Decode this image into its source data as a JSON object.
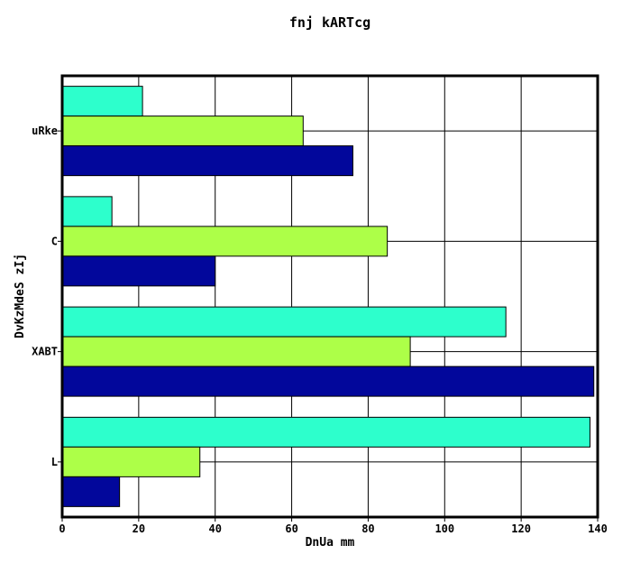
{
  "chart_data": {
    "type": "bar",
    "orientation": "horizontal",
    "title": "fnj kARTcg",
    "xlabel": "DnUa mm",
    "ylabel": "DvKzMdeS zIj",
    "categories": [
      "uRke",
      "C",
      "XABT",
      "L"
    ],
    "xlim": [
      0,
      140
    ],
    "xticks": [
      "0",
      "20",
      "40",
      "60",
      "80",
      "100",
      "120",
      "140"
    ],
    "grid": true,
    "legend": "none",
    "series": [
      {
        "color": "#2dffcc",
        "values": [
          21,
          13,
          116,
          138
        ]
      },
      {
        "color": "#adff48",
        "values": [
          63,
          85,
          91,
          36
        ]
      },
      {
        "color": "#02079b",
        "values": [
          76,
          40,
          139,
          15
        ]
      }
    ]
  }
}
